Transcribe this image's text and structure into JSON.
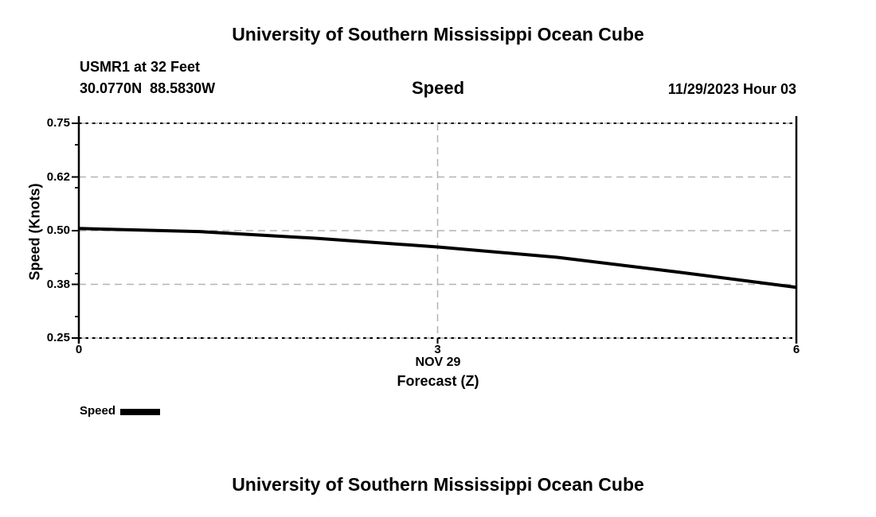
{
  "page": {
    "title_top": "University of Southern Mississippi Ocean Cube",
    "title_bottom": "University of Southern Mississippi Ocean Cube"
  },
  "header": {
    "station_name": "USMR1 at 32 Feet",
    "station_coordinates": "30.0770N  88.5830W",
    "plot_title": "Speed",
    "datetime_label": "11/29/2023 Hour 03"
  },
  "chart_data": {
    "type": "line",
    "title": "Speed",
    "ylabel": "Speed (Knots)",
    "xlabel_line1": "NOV 29",
    "xlabel_line2": "Forecast (Z)",
    "x": [
      0,
      1,
      2,
      3,
      4,
      5,
      6
    ],
    "y": [
      0.505,
      0.498,
      0.482,
      0.462,
      0.438,
      0.404,
      0.368
    ],
    "xlim": [
      0,
      6
    ],
    "ylim": [
      0.25,
      0.75
    ],
    "x_ticks": [
      0,
      3,
      6
    ],
    "x_tick_labels": [
      "0",
      "3",
      "6"
    ],
    "y_ticks": [
      0.25,
      0.375,
      0.5,
      0.625,
      0.75
    ],
    "y_tick_labels": [
      "0.25",
      "0.38",
      "0.50",
      "0.62",
      "0.75"
    ],
    "y_minor_ticks": [
      0.3,
      0.4,
      0.6,
      0.7
    ],
    "grid": "dashed",
    "line_color": "#000000",
    "grid_color": "#b3b3b3",
    "legend_position": "bottom-left",
    "legend": [
      {
        "label": "Speed",
        "color": "#000000"
      }
    ]
  }
}
